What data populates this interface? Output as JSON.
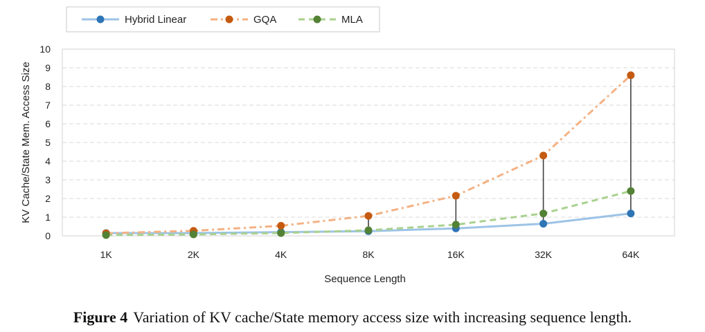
{
  "caption": {
    "label": "Figure 4",
    "text": "Variation of KV cache/State memory access size with increasing sequence length."
  },
  "chart_data": {
    "type": "line",
    "categories": [
      "1K",
      "2K",
      "4K",
      "8K",
      "16K",
      "32K",
      "64K"
    ],
    "xlabel": "Sequence Length",
    "ylabel": "KV Cache/State Mem. Access Size",
    "ylim": [
      0,
      10
    ],
    "yticks": [
      0,
      1,
      2,
      3,
      4,
      5,
      6,
      7,
      8,
      9,
      10
    ],
    "grid": "horizontal-dashed",
    "legend_position": "top",
    "series": [
      {
        "name": "Hybrid Linear",
        "values": [
          0.15,
          0.15,
          0.2,
          0.25,
          0.4,
          0.65,
          1.2
        ],
        "line_color": "#9dc3e6",
        "marker_color": "#2e75b6",
        "line_style": "solid"
      },
      {
        "name": "GQA",
        "values": [
          0.14,
          0.27,
          0.54,
          1.07,
          2.15,
          4.3,
          8.6
        ],
        "line_color": "#f4b183",
        "marker_color": "#c55a11",
        "line_style": "dash-dot"
      },
      {
        "name": "MLA",
        "values": [
          0.04,
          0.08,
          0.15,
          0.3,
          0.6,
          1.2,
          2.4
        ],
        "line_color": "#a9d18e",
        "marker_color": "#548235",
        "line_style": "dashed"
      }
    ],
    "connectors": {
      "color": "#404040",
      "from_index": 3
    }
  }
}
